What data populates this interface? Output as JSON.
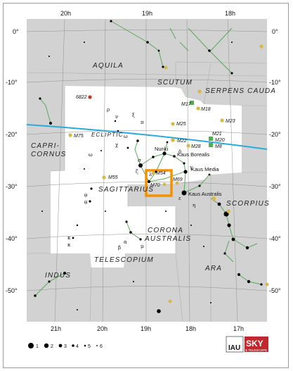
{
  "ra_labels": {
    "top": [
      "20h",
      "19h",
      "18h"
    ],
    "bottom": [
      "21h",
      "20h",
      "19h",
      "18h",
      "17h"
    ]
  },
  "dec_labels": [
    "0°",
    "-10°",
    "-20°",
    "-30°",
    "-40°",
    "-50°"
  ],
  "constellations": [
    "AQUILA",
    "SCUTUM",
    "SERPENS CAUDA",
    "CAPRI-",
    "CORNUS",
    "SAGITTARIUS",
    "SCORPIUS",
    "CORONA",
    "AUSTRALIS",
    "TELESCOPIUM",
    "INDUS",
    "ARA"
  ],
  "ecliptic_label": "ECLIPTIC",
  "deep_sky_objects": [
    "6822",
    "M17",
    "M18",
    "M25",
    "M23",
    "M75",
    "M22",
    "M21",
    "M20",
    "M28",
    "M8",
    "M54",
    "M70",
    "M69",
    "M55"
  ],
  "star_names": [
    "Nunki",
    "Kaus Borealis",
    "Kaus Media",
    "Kaus Australis"
  ],
  "legend": {
    "magnitudes": [
      "1",
      "2",
      "3",
      "4",
      "5",
      "6"
    ]
  },
  "logos": {
    "iau": "IAU",
    "sky_top": "SKY",
    "sky_bottom": "& TELESCOPE"
  },
  "colors": {
    "ecliptic": "#29a9dc",
    "highlight": "#f39200",
    "constellation_lines": "#5aa85a",
    "outside_region": "#d2d2d2",
    "cluster": "#d8b84a",
    "nebula": "#4db04d"
  }
}
